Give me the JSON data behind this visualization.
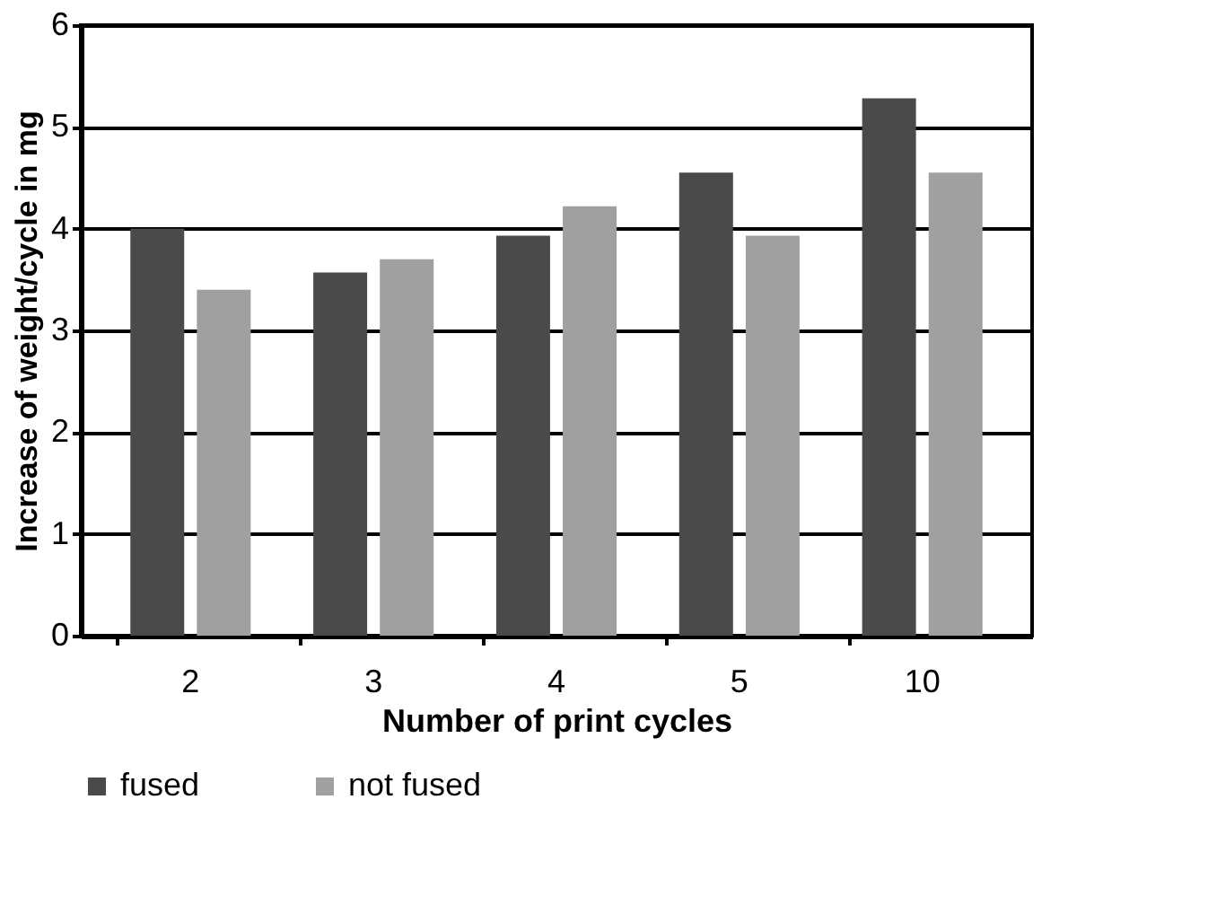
{
  "chart_data": {
    "type": "bar",
    "xlabel": "Number of print cycles",
    "ylabel": "Increase of weight/cycle in mg",
    "categories": [
      "2",
      "3",
      "4",
      "5",
      "10"
    ],
    "series": [
      {
        "name": "fused",
        "color": "#4a4a4a",
        "values": [
          4.0,
          3.57,
          3.93,
          4.55,
          5.28
        ]
      },
      {
        "name": "not fused",
        "color": "#a0a0a0",
        "values": [
          3.4,
          3.7,
          4.22,
          3.93,
          4.55
        ]
      }
    ],
    "ylim": [
      0,
      6
    ],
    "yticks": [
      0,
      1,
      2,
      3,
      4,
      5,
      6
    ],
    "grid": "y",
    "legend": "bottom"
  }
}
